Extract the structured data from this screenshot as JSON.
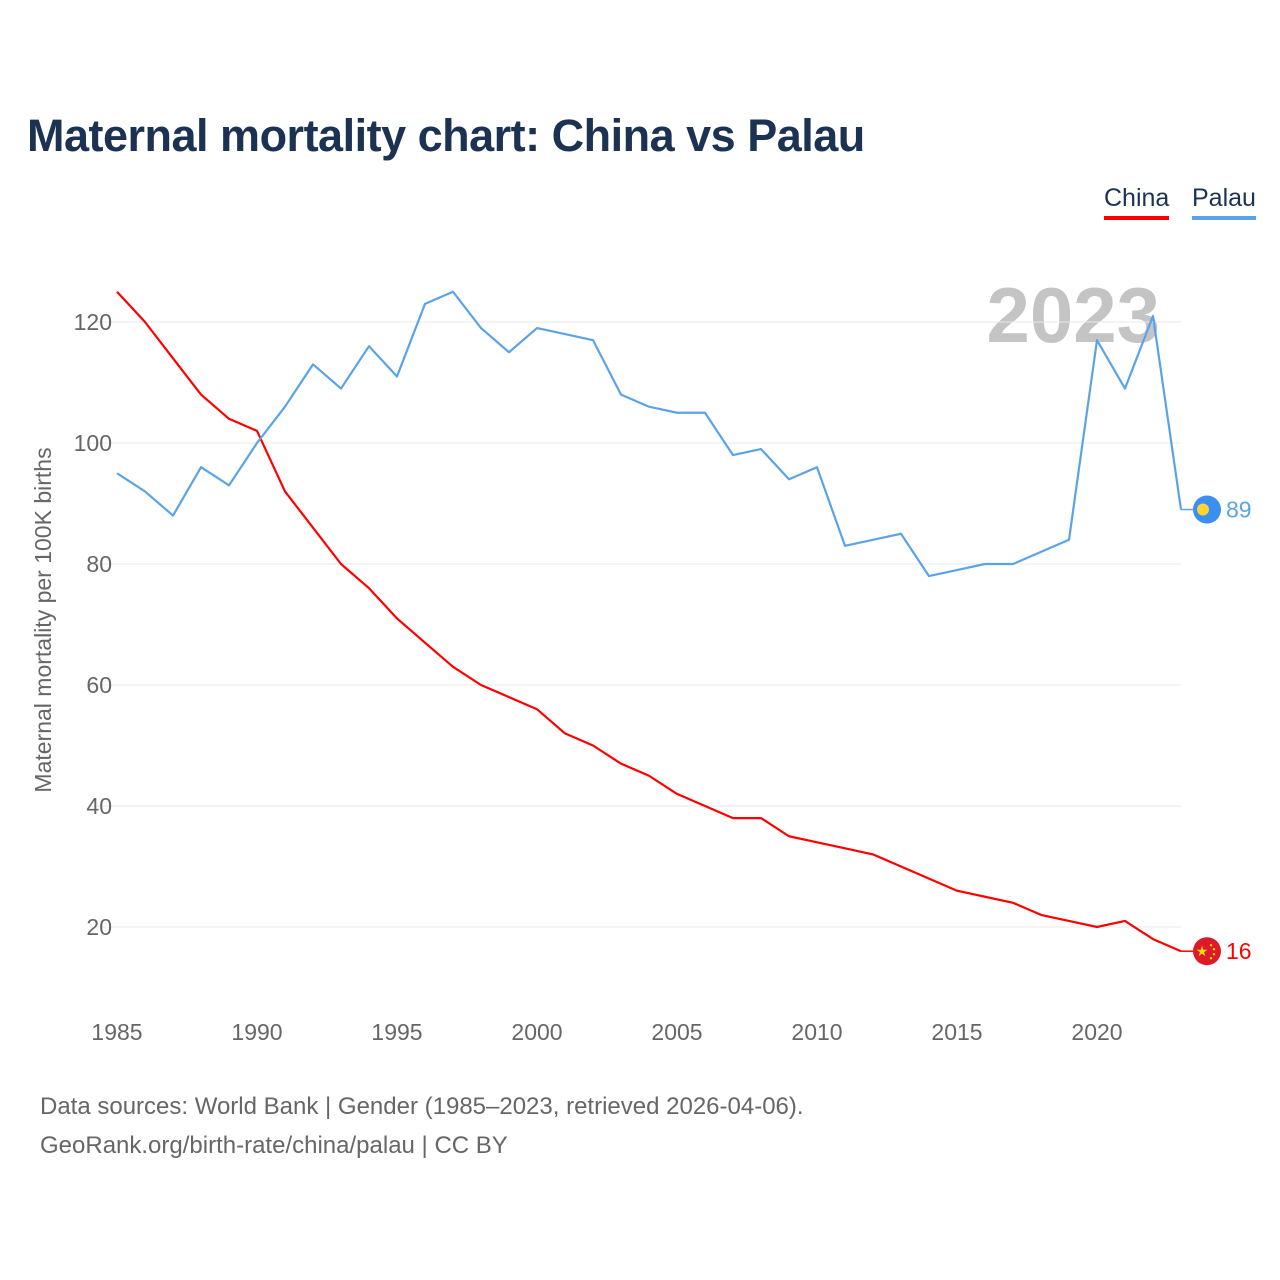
{
  "chart_data": {
    "type": "line",
    "title": "Maternal mortality chart: China vs Palau",
    "ylabel": "Maternal mortality per 100K births",
    "xlabel": "",
    "year_label": "2023",
    "ylim": [
      10,
      130
    ],
    "xlim": [
      1985,
      2023
    ],
    "yticks": [
      20,
      40,
      60,
      80,
      100,
      120
    ],
    "xticks": [
      1985,
      1990,
      1995,
      2000,
      2005,
      2010,
      2015,
      2020
    ],
    "grid": true,
    "legend_position": "top-right",
    "x": [
      1985,
      1986,
      1987,
      1988,
      1989,
      1990,
      1991,
      1992,
      1993,
      1994,
      1995,
      1996,
      1997,
      1998,
      1999,
      2000,
      2001,
      2002,
      2003,
      2004,
      2005,
      2006,
      2007,
      2008,
      2009,
      2010,
      2011,
      2012,
      2013,
      2014,
      2015,
      2016,
      2017,
      2018,
      2019,
      2020,
      2021,
      2022,
      2023
    ],
    "series": [
      {
        "name": "China",
        "color": "#ff0000",
        "end_label": "16",
        "values": [
          125,
          120,
          114,
          108,
          104,
          102,
          92,
          86,
          80,
          76,
          71,
          67,
          63,
          60,
          58,
          56,
          52,
          50,
          47,
          45,
          42,
          40,
          38,
          38,
          35,
          34,
          33,
          32,
          30,
          28,
          26,
          25,
          24,
          22,
          21,
          20,
          21,
          18,
          16
        ]
      },
      {
        "name": "Palau",
        "color": "#5ba3e8",
        "end_label": "89",
        "values": [
          95,
          92,
          88,
          96,
          93,
          100,
          106,
          113,
          109,
          116,
          111,
          123,
          125,
          119,
          115,
          119,
          118,
          117,
          108,
          106,
          105,
          105,
          98,
          99,
          94,
          96,
          83,
          84,
          85,
          78,
          79,
          80,
          80,
          82,
          84,
          117,
          109,
          121,
          89
        ]
      }
    ]
  },
  "footer": {
    "line1": "Data sources: World Bank | Gender (1985–2023, retrieved 2026-04-06).",
    "line2": "GeoRank.org/birth-rate/china/palau | CC BY"
  }
}
